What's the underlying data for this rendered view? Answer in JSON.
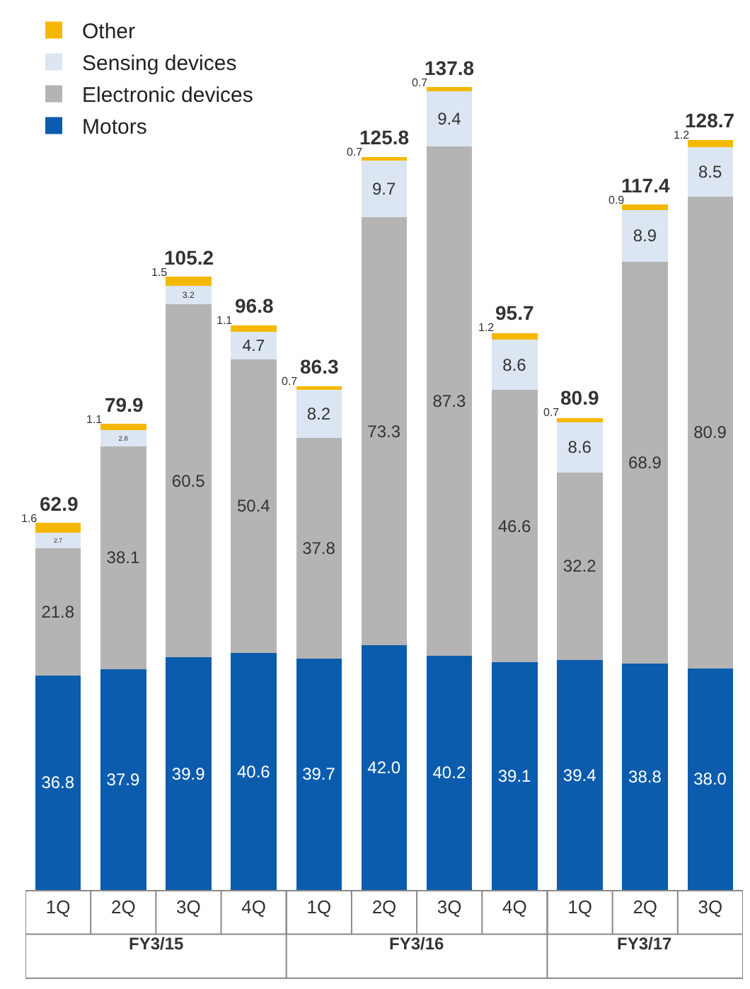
{
  "chart_data": {
    "type": "bar",
    "stacked": true,
    "data_labels": true,
    "legend": "top left",
    "categories": [
      "1Q",
      "2Q",
      "3Q",
      "4Q",
      "1Q",
      "2Q",
      "3Q",
      "4Q",
      "1Q",
      "2Q",
      "3Q"
    ],
    "series": [
      {
        "name": "Motors",
        "color": "#0b5cad",
        "values": [
          36.8,
          37.9,
          39.9,
          40.6,
          39.7,
          42.0,
          40.2,
          39.1,
          39.4,
          38.8,
          38.0
        ],
        "value_labels": [
          "36.8",
          "37.9",
          "39.9",
          "40.6",
          "39.7",
          "42.0",
          "40.2",
          "39.1",
          "39.4",
          "38.8",
          "38.0"
        ]
      },
      {
        "name": "Electronic devices",
        "color": "#b4b4b4",
        "values": [
          21.8,
          38.1,
          60.5,
          50.4,
          37.8,
          73.3,
          87.3,
          46.6,
          32.2,
          68.9,
          80.9
        ]
      },
      {
        "name": "Sensing devices",
        "color": "#dce6f2",
        "values": [
          2.7,
          2.8,
          3.2,
          4.7,
          8.2,
          9.7,
          9.4,
          8.6,
          8.6,
          8.9,
          8.5
        ]
      },
      {
        "name": "Other",
        "color": "#f5b800",
        "values": [
          1.6,
          1.1,
          1.5,
          1.1,
          0.7,
          0.7,
          0.7,
          1.2,
          0.7,
          0.9,
          1.2
        ]
      }
    ],
    "totals": [
      "62.9",
      "79.9",
      "105.2",
      "96.8",
      "86.3",
      "125.8",
      "137.8",
      "95.7",
      "80.9",
      "117.4",
      "128.7"
    ],
    "annotations": [
      "FY3/15",
      "FY3/16",
      "FY3/17"
    ]
  }
}
